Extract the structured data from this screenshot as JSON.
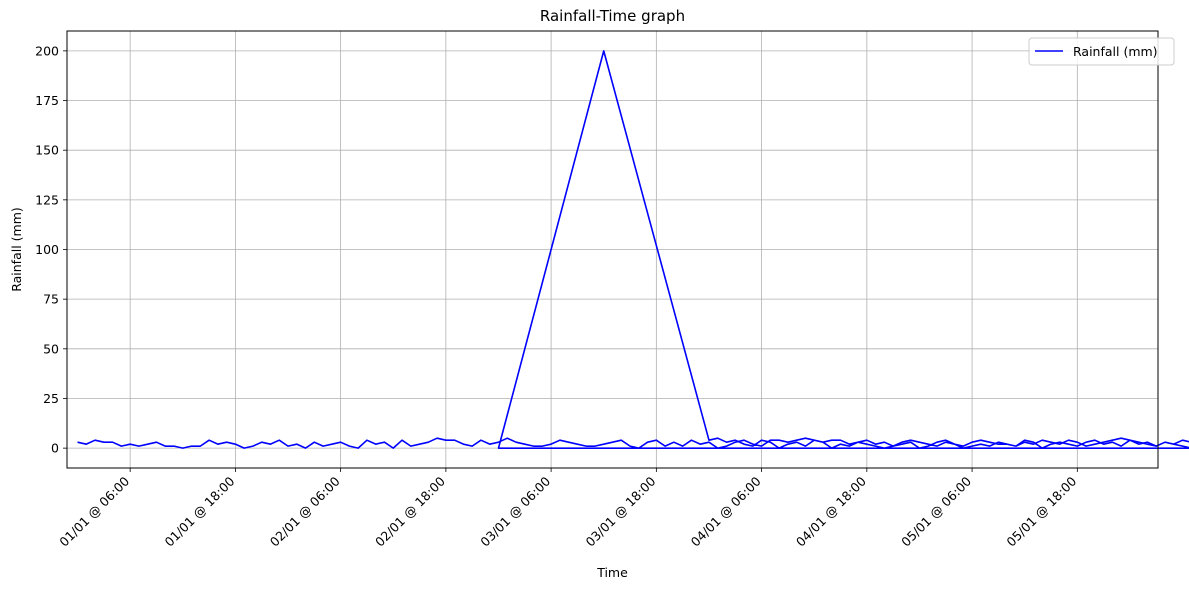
{
  "chart_data": {
    "type": "line",
    "title": "Rainfall-Time graph",
    "xlabel": "Time",
    "ylabel": "Rainfall (mm)",
    "x_ticks": [
      "01/01 @ 06:00",
      "01/01 @ 18:00",
      "02/01 @ 06:00",
      "02/01 @ 18:00",
      "03/01 @ 06:00",
      "03/01 @ 18:00",
      "04/01 @ 06:00",
      "04/01 @ 18:00",
      "05/01 @ 06:00",
      "05/01 @ 18:00"
    ],
    "y_ticks": [
      0,
      25,
      50,
      75,
      100,
      125,
      150,
      175,
      200
    ],
    "ylim": [
      -10,
      210
    ],
    "xlim": [
      "2000-12-31T22:48",
      "2001-01-06T03:12"
    ],
    "grid": true,
    "legend_position": "top-right",
    "series": [
      {
        "name": "Rainfall (mm)",
        "color": "#0000ff",
        "x": [
          "2001-01-01T00:00",
          "2001-01-03T00:00",
          "2001-01-03T12:00",
          "2001-01-04T00:00",
          "2001-01-06T00:00"
        ],
        "y": [
          3,
          0,
          200,
          4,
          3
        ],
        "note_noise": "hourly values fluctuate between 0 and 5 mm outside the peak"
      }
    ],
    "hourly_baseline": {
      "segment_1": [
        3,
        2,
        4,
        3,
        3,
        1,
        2,
        1,
        2,
        3,
        1,
        1,
        0,
        1,
        1,
        4,
        2,
        3,
        2,
        0,
        1,
        3,
        2,
        4,
        1,
        2,
        0,
        3,
        1,
        2,
        3,
        1,
        0,
        4,
        2,
        3,
        0,
        4,
        1,
        2,
        3,
        5,
        4,
        4,
        2,
        1,
        4,
        2,
        3,
        5,
        3,
        2,
        1,
        1,
        2,
        4,
        3,
        2,
        1,
        1,
        2,
        3,
        4,
        1,
        0,
        3,
        4,
        1,
        3,
        1,
        4,
        2,
        3,
        0,
        1,
        3,
        4,
        2,
        1,
        4,
        4,
        3,
        4,
        5,
        4,
        3,
        4,
        4,
        2,
        3,
        2,
        1,
        0,
        1,
        2,
        3,
        0,
        1,
        3,
        4,
        2,
        1,
        3,
        4,
        3,
        2,
        2,
        1,
        3,
        2,
        4,
        3,
        2,
        4,
        3,
        1,
        2,
        3,
        4,
        5,
        4,
        3,
        2,
        1,
        3,
        2,
        1,
        0,
        3,
        2,
        1,
        2,
        1,
        3,
        2,
        1,
        0,
        3,
        4,
        2,
        1,
        3,
        2,
        3,
        2,
        1,
        3,
        4,
        2,
        3,
        4,
        2,
        1,
        3,
        4,
        3,
        2,
        4,
        3,
        2,
        4,
        3,
        5,
        4,
        3,
        2,
        1,
        2,
        3,
        4,
        1,
        2,
        3,
        4,
        2,
        1,
        2,
        3,
        1,
        1,
        0,
        2,
        1,
        0
      ],
      "segment_2": [
        5,
        3,
        4,
        2,
        1,
        4,
        3,
        0,
        2,
        3,
        1,
        4,
        3,
        0,
        2,
        1,
        3,
        4,
        2,
        3,
        1,
        3,
        4,
        3,
        2,
        1,
        3,
        2,
        0,
        1,
        2,
        1,
        3,
        2,
        1,
        4,
        3,
        0,
        2,
        3,
        2,
        1,
        3,
        4,
        2,
        3,
        1,
        4,
        2,
        3,
        1,
        3,
        2,
        4,
        3,
        1,
        2,
        4,
        3,
        2,
        1,
        3,
        4,
        2,
        1,
        3,
        4,
        1,
        3,
        2,
        1,
        4,
        3,
        2,
        3,
        4,
        1,
        3,
        2,
        4,
        5,
        1,
        3,
        4,
        2,
        1,
        3,
        2,
        4,
        1,
        2,
        3,
        1,
        0,
        3,
        2,
        1,
        4,
        2,
        3,
        1,
        2,
        4,
        3,
        5,
        2,
        3,
        1,
        4,
        2,
        3,
        1,
        5,
        4,
        2,
        3,
        1,
        4,
        2,
        1,
        3,
        4,
        2,
        0,
        1,
        3,
        5,
        2,
        3,
        4,
        1,
        2,
        3,
        4,
        5,
        2,
        1,
        3,
        4,
        2,
        3,
        1,
        0,
        2,
        1,
        3,
        2,
        1,
        2,
        3,
        4,
        1,
        0,
        2,
        3,
        2,
        1,
        3,
        2,
        4,
        3,
        2,
        1,
        4,
        3,
        5,
        2,
        1,
        4,
        3,
        2,
        3,
        1,
        4,
        2,
        3,
        4,
        5,
        4,
        3,
        2,
        5,
        4,
        3,
        5,
        1,
        3,
        2,
        4,
        3
      ]
    }
  }
}
